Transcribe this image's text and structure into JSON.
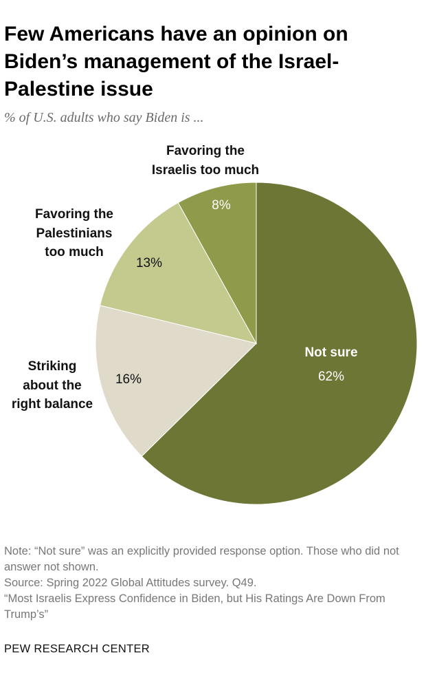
{
  "title": "Few Americans have an opinion on\nBiden’s management of the Israel-\nPalestine issue",
  "subtitle": "% of U.S. adults who say Biden is ...",
  "chart_data": {
    "type": "pie",
    "slices": [
      {
        "label": "Not sure",
        "value": 62,
        "value_label": "62%",
        "color": "#6e7636"
      },
      {
        "label": "Striking about the right balance",
        "value": 16,
        "value_label": "16%",
        "color": "#dfdaca"
      },
      {
        "label": "Favoring the Palestinians too much",
        "value": 13,
        "value_label": "13%",
        "color": "#c4c98d"
      },
      {
        "label": "Favoring the Israelis too much",
        "value": 8,
        "value_label": "8%",
        "color": "#8f9a4b"
      }
    ],
    "category_labels": {
      "not_sure": "Not sure",
      "right_balance": [
        "Striking",
        "about the",
        "right balance"
      ],
      "palestinians": [
        "Favoring the",
        "Palestinians",
        "too much"
      ],
      "israelis": [
        "Favoring the",
        "Israelis too much"
      ]
    }
  },
  "notes": {
    "note": "Note: “Not sure” was an explicitly provided response option. Those who did not answer not shown.",
    "source": "Source: Spring 2022 Global Attitudes survey. Q49.",
    "report": "“Most Israelis Express Confidence in Biden, but His Ratings Are Down From Trump’s”"
  },
  "brand": "PEW RESEARCH CENTER"
}
